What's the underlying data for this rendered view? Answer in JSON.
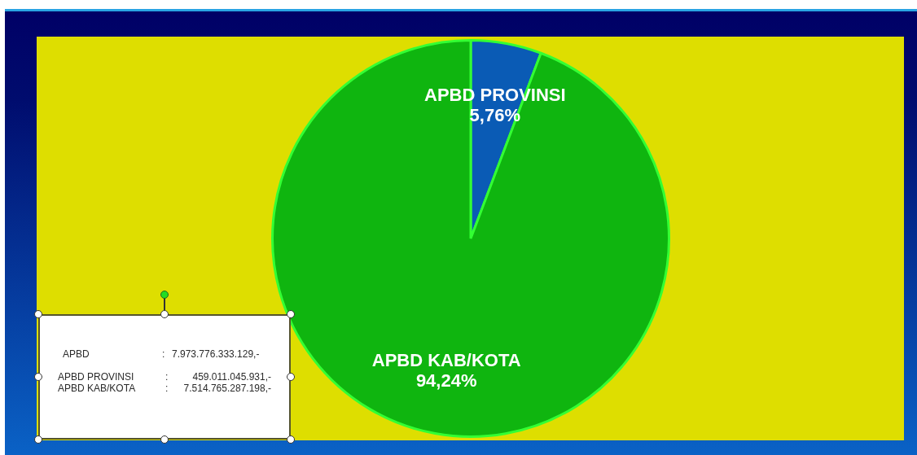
{
  "chart_data": {
    "type": "pie",
    "categories": [
      "APBD PROVINSI",
      "APBD KAB/KOTA"
    ],
    "values": [
      5.76,
      94.24
    ],
    "colors": [
      "#0a5bb5",
      "#0fb50f"
    ],
    "value_labels": [
      "5,76%",
      "94,24%"
    ],
    "annotations": [
      "APBD : 7.973.776.333.129,-",
      "APBD PROVINSI : 459.011.045.931,-",
      "APBD KAB/KOTA : 7.514.765.287.198,-"
    ]
  }
}
